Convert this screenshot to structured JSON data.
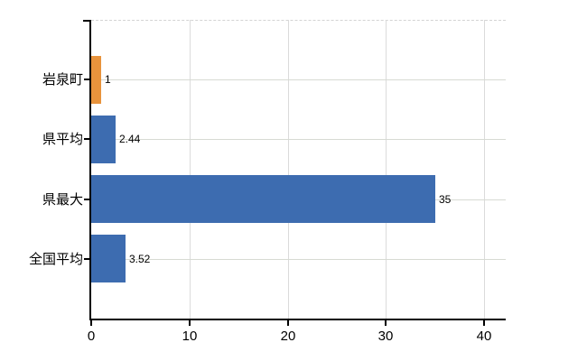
{
  "chart_data": {
    "type": "bar",
    "orientation": "horizontal",
    "title": "",
    "xlabel": "",
    "ylabel": "",
    "categories": [
      "岩泉町",
      "県平均",
      "県最大",
      "全国平均"
    ],
    "values": [
      1,
      2.44,
      35,
      3.52
    ],
    "value_labels": [
      "1",
      "2.44",
      "35",
      "3.52"
    ],
    "bar_colors": [
      "#E8933C",
      "#3D6CB0",
      "#3D6CB0",
      "#3D6CB0"
    ],
    "x_ticks": [
      0,
      10,
      20,
      30,
      40
    ],
    "x_tick_labels": [
      "0",
      "10",
      "20",
      "30",
      "40"
    ],
    "xlim": [
      0,
      42.2
    ],
    "grid": true,
    "legend": false,
    "colors": {
      "background": "#FFFFFF",
      "axis": "#000000",
      "gridline_horizontal": "#D7DAD3",
      "gridline_vertical": "#DBDBDB",
      "text": "#000000",
      "bar_blue": "#3D6CB0",
      "bar_orange": "#E8933C"
    }
  }
}
